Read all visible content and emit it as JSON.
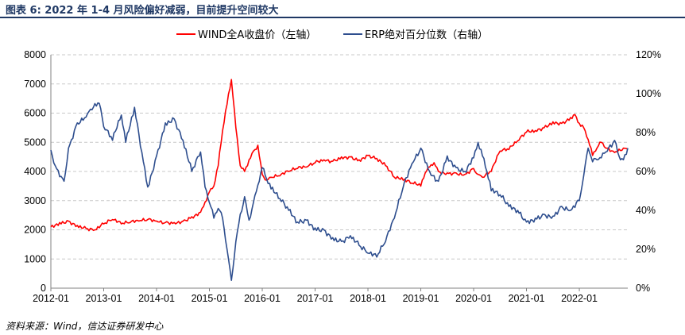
{
  "figure": {
    "title": "图表 6:  2022 年 1-4 月风险偏好减弱，目前提升空间较大",
    "source": "资料来源：Wind，信达证券研发中心"
  },
  "chart_data": {
    "type": "line",
    "title": "",
    "xlabel": "",
    "ylabel": "",
    "x_range": [
      "2012-01",
      "2022-12"
    ],
    "x_ticks": [
      "2012-01",
      "2013-01",
      "2014-01",
      "2015-01",
      "2016-01",
      "2017-01",
      "2018-01",
      "2019-01",
      "2020-01",
      "2021-01",
      "2022-01"
    ],
    "y_left": {
      "min": 0,
      "max": 8000,
      "ticks": [
        "0",
        "1000",
        "2000",
        "3000",
        "4000",
        "5000",
        "6000",
        "7000",
        "8000"
      ]
    },
    "y_right": {
      "min": 0,
      "max": 120,
      "unit": "%",
      "ticks": [
        "0%",
        "20%",
        "40%",
        "60%",
        "80%",
        "100%",
        "120%"
      ]
    },
    "grid": "horizontal dashed",
    "legend_position": "top-center",
    "series": [
      {
        "name": "WIND全A收盘价（左轴）",
        "axis": "left",
        "color": "#ff0000",
        "x": [
          "2012-01",
          "2012-03",
          "2012-05",
          "2012-07",
          "2012-09",
          "2012-11",
          "2013-01",
          "2013-03",
          "2013-05",
          "2013-07",
          "2013-09",
          "2013-11",
          "2014-01",
          "2014-03",
          "2014-05",
          "2014-07",
          "2014-09",
          "2014-11",
          "2014-12",
          "2015-01",
          "2015-02",
          "2015-03",
          "2015-04",
          "2015-05",
          "2015-06",
          "2015-07",
          "2015-08",
          "2015-09",
          "2015-10",
          "2015-11",
          "2015-12",
          "2016-01",
          "2016-02",
          "2016-03",
          "2016-05",
          "2016-07",
          "2016-09",
          "2016-11",
          "2017-01",
          "2017-03",
          "2017-05",
          "2017-07",
          "2017-09",
          "2017-11",
          "2018-01",
          "2018-03",
          "2018-05",
          "2018-07",
          "2018-09",
          "2018-11",
          "2019-01",
          "2019-02",
          "2019-03",
          "2019-04",
          "2019-05",
          "2019-07",
          "2019-09",
          "2019-11",
          "2020-01",
          "2020-02",
          "2020-03",
          "2020-05",
          "2020-07",
          "2020-09",
          "2020-11",
          "2021-01",
          "2021-03",
          "2021-05",
          "2021-07",
          "2021-09",
          "2021-11",
          "2021-12",
          "2022-01",
          "2022-02",
          "2022-03",
          "2022-04",
          "2022-05",
          "2022-06",
          "2022-07",
          "2022-09",
          "2022-11",
          "2022-12"
        ],
        "values": [
          2100,
          2250,
          2300,
          2150,
          2050,
          2000,
          2200,
          2350,
          2200,
          2250,
          2300,
          2350,
          2300,
          2250,
          2250,
          2300,
          2450,
          2600,
          2950,
          3300,
          3500,
          4200,
          5400,
          6300,
          7150,
          5500,
          4200,
          4000,
          4400,
          4700,
          4900,
          3900,
          3700,
          3800,
          3850,
          4000,
          4100,
          4150,
          4300,
          4400,
          4350,
          4500,
          4500,
          4400,
          4550,
          4450,
          4200,
          3800,
          3700,
          3600,
          3500,
          3950,
          4150,
          4300,
          4000,
          3950,
          3950,
          3900,
          4100,
          3900,
          3800,
          4000,
          4700,
          4750,
          5050,
          5350,
          5400,
          5500,
          5700,
          5650,
          5850,
          5950,
          5650,
          5500,
          5100,
          4550,
          4800,
          5000,
          4800,
          4650,
          4800,
          4750
        ]
      },
      {
        "name": "ERP绝对百分位数（右轴）",
        "axis": "right",
        "color": "#2e4e8e",
        "x": [
          "2012-01",
          "2012-02",
          "2012-04",
          "2012-05",
          "2012-07",
          "2012-09",
          "2012-10",
          "2012-12",
          "2013-01",
          "2013-03",
          "2013-05",
          "2013-06",
          "2013-08",
          "2013-10",
          "2013-11",
          "2014-01",
          "2014-03",
          "2014-05",
          "2014-07",
          "2014-09",
          "2014-11",
          "2014-12",
          "2015-01",
          "2015-02",
          "2015-03",
          "2015-04",
          "2015-05",
          "2015-06",
          "2015-07",
          "2015-08",
          "2015-09",
          "2015-10",
          "2015-11",
          "2015-12",
          "2016-01",
          "2016-02",
          "2016-03",
          "2016-05",
          "2016-07",
          "2016-09",
          "2016-11",
          "2017-01",
          "2017-03",
          "2017-05",
          "2017-07",
          "2017-09",
          "2017-11",
          "2018-01",
          "2018-03",
          "2018-05",
          "2018-07",
          "2018-09",
          "2018-11",
          "2019-01",
          "2019-03",
          "2019-05",
          "2019-07",
          "2019-09",
          "2019-11",
          "2020-01",
          "2020-02",
          "2020-03",
          "2020-04",
          "2020-05",
          "2020-07",
          "2020-09",
          "2020-11",
          "2021-01",
          "2021-03",
          "2021-05",
          "2021-07",
          "2021-09",
          "2021-11",
          "2022-01",
          "2022-02",
          "2022-03",
          "2022-04",
          "2022-05",
          "2022-06",
          "2022-07",
          "2022-09",
          "2022-10",
          "2022-11",
          "2022-12"
        ],
        "values": [
          71,
          63,
          55,
          72,
          85,
          88,
          92,
          95,
          83,
          76,
          89,
          75,
          93,
          65,
          52,
          68,
          85,
          87,
          76,
          60,
          70,
          52,
          44,
          36,
          41,
          36,
          20,
          4,
          24,
          38,
          47,
          35,
          44,
          53,
          62,
          56,
          51,
          46,
          40,
          34,
          35,
          31,
          30,
          26,
          24,
          27,
          22,
          18,
          16,
          24,
          36,
          52,
          64,
          72,
          60,
          55,
          68,
          62,
          60,
          67,
          75,
          68,
          60,
          50,
          48,
          42,
          40,
          34,
          36,
          38,
          37,
          42,
          40,
          45,
          58,
          72,
          65,
          66,
          67,
          70,
          76,
          68,
          66,
          72
        ]
      }
    ]
  }
}
